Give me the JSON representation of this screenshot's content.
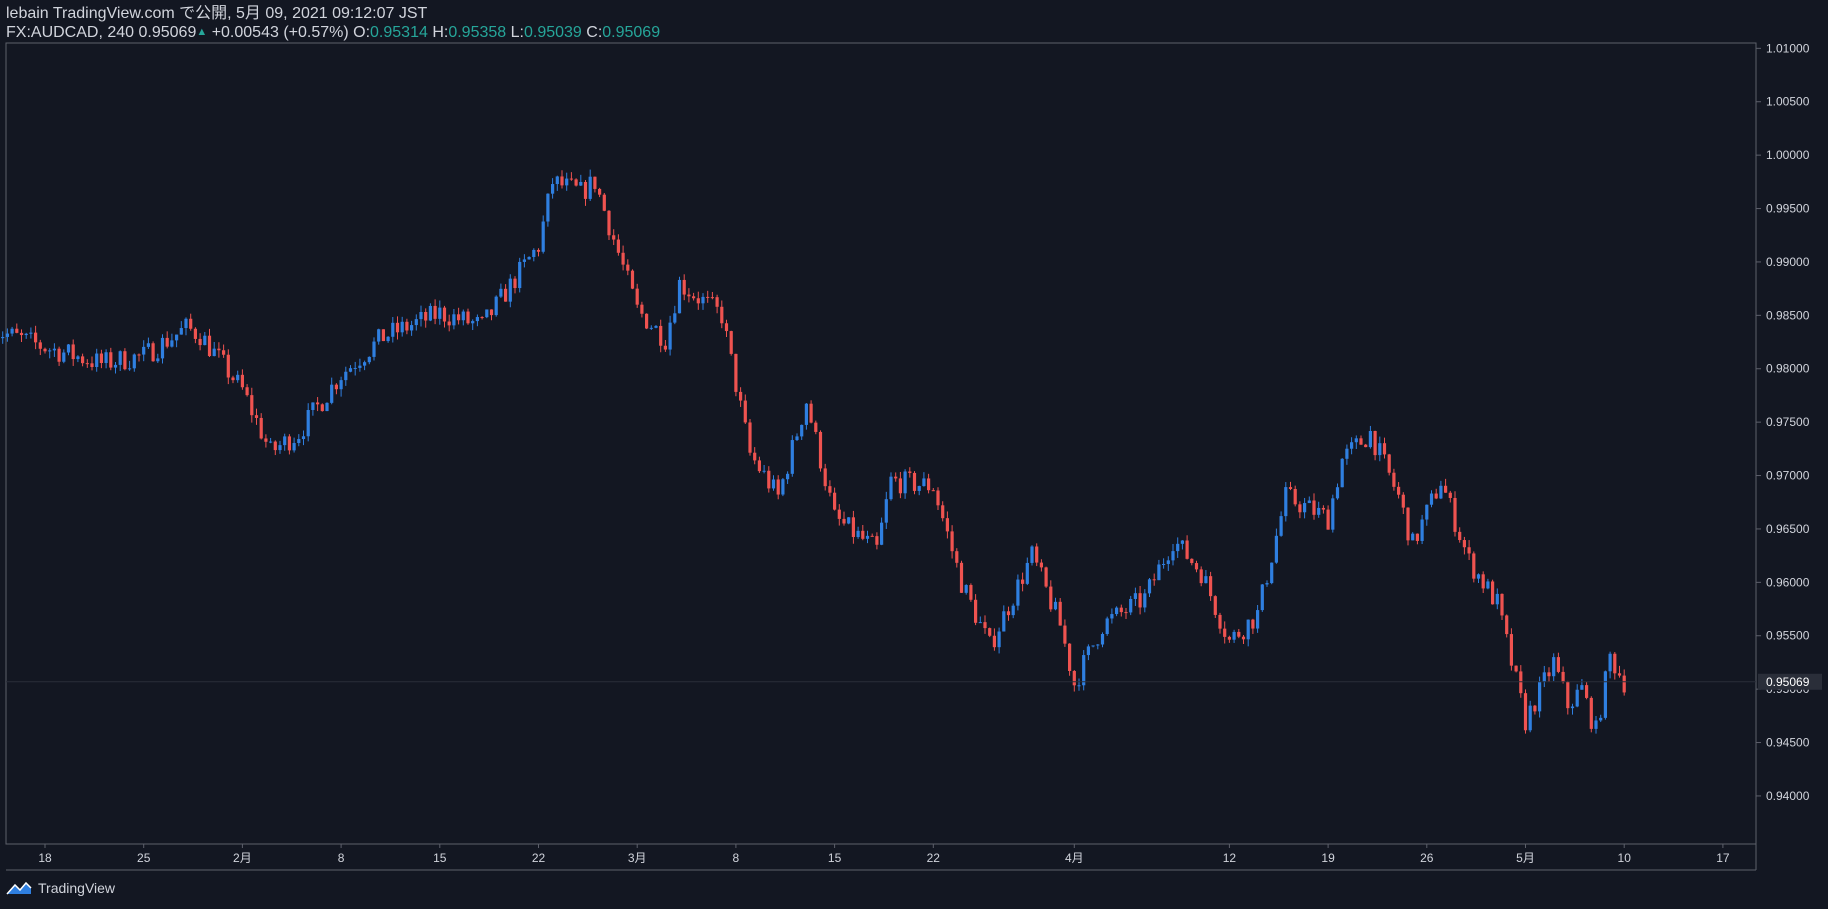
{
  "header": {
    "published_line": "lebain TradingView.com で公開, 5月 09, 2021 09:12:07 JST",
    "symbol": "FX:AUDCAD, 240",
    "last": "0.95069",
    "change_arrow": "▲",
    "change": "+0.00543 (+0.57%)",
    "o_label": "O:",
    "o_value": "0.95314",
    "h_label": "H:",
    "h_value": "0.95358",
    "l_label": "L:",
    "l_value": "0.95039",
    "c_label": "C:",
    "c_value": "0.95069"
  },
  "footer": {
    "brand": "TradingView"
  },
  "colors": {
    "background": "#131722",
    "up": "#2f7fe0",
    "down": "#ef5350",
    "text": "#d1d4dc",
    "teal": "#26a69a",
    "grid_border": "#5d606b"
  },
  "chart_data": {
    "type": "candlestick",
    "title": "",
    "ylim": [
      0.9355,
      1.0105
    ],
    "y_ticks": [
      "1.01000",
      "1.00500",
      "1.00000",
      "0.99500",
      "0.99000",
      "0.98500",
      "0.98000",
      "0.97500",
      "0.97000",
      "0.96500",
      "0.96000",
      "0.95500",
      "0.95000",
      "0.94500",
      "0.94000"
    ],
    "x_ticks": [
      {
        "label": "18",
        "date": "2021-01-18"
      },
      {
        "label": "25",
        "date": "2021-01-25"
      },
      {
        "label": "2月",
        "date": "2021-02-01"
      },
      {
        "label": "8",
        "date": "2021-02-08"
      },
      {
        "label": "15",
        "date": "2021-02-15"
      },
      {
        "label": "22",
        "date": "2021-02-22"
      },
      {
        "label": "3月",
        "date": "2021-03-01"
      },
      {
        "label": "8",
        "date": "2021-03-08"
      },
      {
        "label": "15",
        "date": "2021-03-15"
      },
      {
        "label": "22",
        "date": "2021-03-22"
      },
      {
        "label": "4月",
        "date": "2021-04-01"
      },
      {
        "label": "12",
        "date": "2021-04-12"
      },
      {
        "label": "19",
        "date": "2021-04-19"
      },
      {
        "label": "26",
        "date": "2021-04-26"
      },
      {
        "label": "5月",
        "date": "2021-05-03"
      },
      {
        "label": "10",
        "date": "2021-05-10"
      },
      {
        "label": "17",
        "date": "2021-05-17"
      }
    ],
    "last_price_label": "0.95069",
    "close_path": [
      {
        "date": "2021-01-14",
        "close": 0.9838
      },
      {
        "date": "2021-01-18",
        "close": 0.982
      },
      {
        "date": "2021-01-22",
        "close": 0.9805
      },
      {
        "date": "2021-01-25",
        "close": 0.9812
      },
      {
        "date": "2021-01-28",
        "close": 0.9838
      },
      {
        "date": "2021-01-29",
        "close": 0.9832
      },
      {
        "date": "2021-02-01",
        "close": 0.978
      },
      {
        "date": "2021-02-03",
        "close": 0.9722
      },
      {
        "date": "2021-02-05",
        "close": 0.974
      },
      {
        "date": "2021-02-08",
        "close": 0.9795
      },
      {
        "date": "2021-02-11",
        "close": 0.983
      },
      {
        "date": "2021-02-15",
        "close": 0.9852
      },
      {
        "date": "2021-02-18",
        "close": 0.984
      },
      {
        "date": "2021-02-22",
        "close": 0.9915
      },
      {
        "date": "2021-02-23",
        "close": 0.9975
      },
      {
        "date": "2021-02-25",
        "close": 0.9965
      },
      {
        "date": "2021-02-26",
        "close": 0.9975
      },
      {
        "date": "2021-03-01",
        "close": 0.9855
      },
      {
        "date": "2021-03-03",
        "close": 0.9828
      },
      {
        "date": "2021-03-04",
        "close": 0.988
      },
      {
        "date": "2021-03-07",
        "close": 0.985
      },
      {
        "date": "2021-03-09",
        "close": 0.972
      },
      {
        "date": "2021-03-11",
        "close": 0.968
      },
      {
        "date": "2021-03-13",
        "close": 0.977
      },
      {
        "date": "2021-03-15",
        "close": 0.966
      },
      {
        "date": "2021-03-18",
        "close": 0.963
      },
      {
        "date": "2021-03-19",
        "close": 0.9695
      },
      {
        "date": "2021-03-22",
        "close": 0.969
      },
      {
        "date": "2021-03-24",
        "close": 0.96
      },
      {
        "date": "2021-03-26",
        "close": 0.954
      },
      {
        "date": "2021-03-29",
        "close": 0.9625
      },
      {
        "date": "2021-03-31",
        "close": 0.956
      },
      {
        "date": "2021-04-01",
        "close": 0.9505
      },
      {
        "date": "2021-04-03",
        "close": 0.956
      },
      {
        "date": "2021-04-06",
        "close": 0.9585
      },
      {
        "date": "2021-04-08",
        "close": 0.964
      },
      {
        "date": "2021-04-10",
        "close": 0.961
      },
      {
        "date": "2021-04-12",
        "close": 0.9545
      },
      {
        "date": "2021-04-14",
        "close": 0.957
      },
      {
        "date": "2021-04-16",
        "close": 0.968
      },
      {
        "date": "2021-04-19",
        "close": 0.966
      },
      {
        "date": "2021-04-20",
        "close": 0.9715
      },
      {
        "date": "2021-04-22",
        "close": 0.974
      },
      {
        "date": "2021-04-24",
        "close": 0.968
      },
      {
        "date": "2021-04-25",
        "close": 0.9635
      },
      {
        "date": "2021-04-27",
        "close": 0.9695
      },
      {
        "date": "2021-04-29",
        "close": 0.962
      },
      {
        "date": "2021-05-01",
        "close": 0.958
      },
      {
        "date": "2021-05-03",
        "close": 0.947
      },
      {
        "date": "2021-05-05",
        "close": 0.9525
      },
      {
        "date": "2021-05-06",
        "close": 0.9485
      },
      {
        "date": "2021-05-07",
        "close": 0.95
      },
      {
        "date": "2021-05-08",
        "close": 0.946
      },
      {
        "date": "2021-05-09",
        "close": 0.953
      },
      {
        "date": "2021-05-10",
        "close": 0.9507
      }
    ]
  }
}
